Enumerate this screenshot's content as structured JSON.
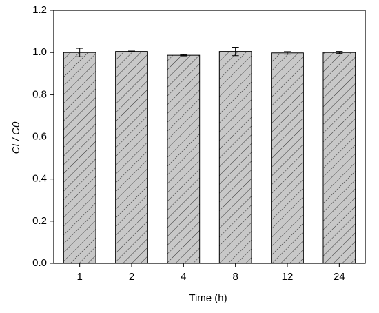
{
  "chart_data": {
    "type": "bar",
    "xlabel": "Time (h)",
    "ylabel": "Ct / C0",
    "categories": [
      "1",
      "2",
      "4",
      "8",
      "12",
      "24"
    ],
    "values": [
      1.0,
      1.005,
      0.987,
      1.005,
      0.998,
      1.0
    ],
    "errors": [
      0.02,
      0.002,
      0.003,
      0.02,
      0.006,
      0.005
    ],
    "color": "#c8c8c8",
    "ylim": [
      0,
      1.2
    ],
    "yticks": [
      {
        "value": 0,
        "label": "0.0"
      },
      {
        "value": 0.2,
        "label": "0.2"
      },
      {
        "value": 0.4,
        "label": "0.4"
      },
      {
        "value": 0.6,
        "label": "0.6"
      },
      {
        "value": 0.8,
        "label": "0.8"
      },
      {
        "value": 1.0,
        "label": "1.0"
      },
      {
        "value": 1.2,
        "label": "1.2"
      }
    ]
  }
}
